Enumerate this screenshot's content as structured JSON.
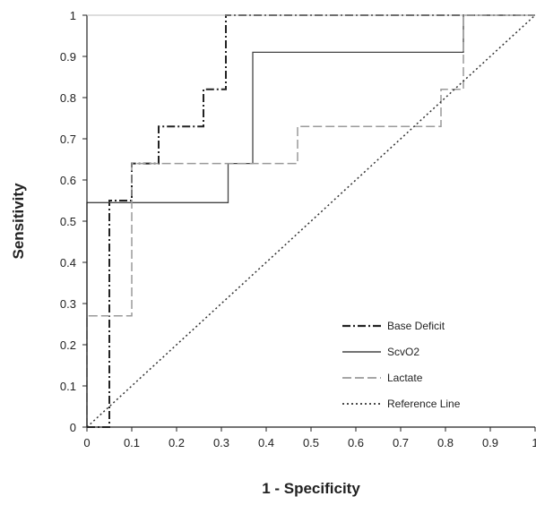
{
  "chart_data": {
    "type": "line",
    "xlabel": "1 - Specificity",
    "ylabel": "Sensitivity",
    "xlim": [
      0,
      1
    ],
    "ylim": [
      0,
      1
    ],
    "x_ticks": [
      {
        "value": 0,
        "label": "0"
      },
      {
        "value": 0.1,
        "label": "0.1"
      },
      {
        "value": 0.2,
        "label": "0.2"
      },
      {
        "value": 0.3,
        "label": "0.3"
      },
      {
        "value": 0.4,
        "label": "0.4"
      },
      {
        "value": 0.5,
        "label": "0.5"
      },
      {
        "value": 0.6,
        "label": "0.6"
      },
      {
        "value": 0.7,
        "label": "0.7"
      },
      {
        "value": 0.8,
        "label": "0.8"
      },
      {
        "value": 0.9,
        "label": "0.9"
      },
      {
        "value": 1,
        "label": "1"
      }
    ],
    "y_ticks": [
      {
        "value": 0,
        "label": "0"
      },
      {
        "value": 0.1,
        "label": "0.1"
      },
      {
        "value": 0.2,
        "label": "0.2"
      },
      {
        "value": 0.3,
        "label": "0.3"
      },
      {
        "value": 0.4,
        "label": "0.4"
      },
      {
        "value": 0.5,
        "label": "0.5"
      },
      {
        "value": 0.6,
        "label": "0.6"
      },
      {
        "value": 0.7,
        "label": "0.7"
      },
      {
        "value": 0.8,
        "label": "0.8"
      },
      {
        "value": 0.9,
        "label": "0.9"
      },
      {
        "value": 1,
        "label": "1"
      }
    ],
    "grid": false,
    "legend_position": "bottom-right",
    "series": [
      {
        "name": "Base Deficit",
        "style": "dash-dot",
        "color": "#222222",
        "points": [
          [
            0,
            0
          ],
          [
            0.05,
            0
          ],
          [
            0.05,
            0.55
          ],
          [
            0.1,
            0.55
          ],
          [
            0.1,
            0.64
          ],
          [
            0.16,
            0.64
          ],
          [
            0.16,
            0.73
          ],
          [
            0.26,
            0.73
          ],
          [
            0.26,
            0.82
          ],
          [
            0.31,
            0.82
          ],
          [
            0.31,
            1
          ],
          [
            1,
            1
          ]
        ]
      },
      {
        "name": "ScvO2",
        "style": "solid",
        "color": "#444444",
        "points": [
          [
            0,
            0
          ],
          [
            0,
            0.545
          ],
          [
            0.315,
            0.545
          ],
          [
            0.315,
            0.64
          ],
          [
            0.37,
            0.64
          ],
          [
            0.37,
            0.91
          ],
          [
            0.84,
            0.91
          ],
          [
            0.84,
            1
          ],
          [
            1,
            1
          ]
        ]
      },
      {
        "name": "Lactate",
        "style": "long-dash",
        "color": "#9a9a9a",
        "points": [
          [
            0,
            0
          ],
          [
            0,
            0.27
          ],
          [
            0.1,
            0.27
          ],
          [
            0.1,
            0.64
          ],
          [
            0.47,
            0.64
          ],
          [
            0.47,
            0.73
          ],
          [
            0.79,
            0.73
          ],
          [
            0.79,
            0.82
          ],
          [
            0.84,
            0.82
          ],
          [
            0.84,
            1
          ],
          [
            1,
            1
          ]
        ]
      },
      {
        "name": "Reference Line",
        "style": "dotted",
        "color": "#333333",
        "points": [
          [
            0,
            0
          ],
          [
            1,
            1
          ]
        ]
      }
    ]
  }
}
